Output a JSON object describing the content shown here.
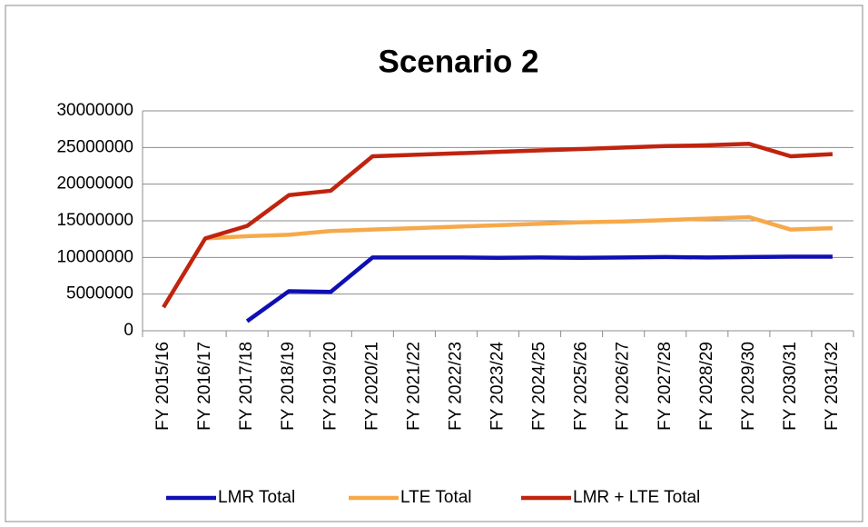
{
  "chart_data": {
    "type": "line",
    "title": "Scenario 2",
    "categories": [
      "FY 2015/16",
      "FY 2016/17",
      "FY 2017/18",
      "FY 2018/19",
      "FY 2019/20",
      "FY 2020/21",
      "FY 2021/22",
      "FY 2022/23",
      "FY 2023/24",
      "FY 2024/25",
      "FY 2025/26",
      "FY 2026/27",
      "FY 2027/28",
      "FY 2028/29",
      "FY 2029/30",
      "FY 2030/31",
      "FY 2031/32"
    ],
    "series": [
      {
        "name": "LMR Total",
        "color": "#0f0fb4",
        "values": [
          null,
          null,
          1300000,
          5400000,
          5300000,
          10000000,
          10000000,
          10000000,
          9950000,
          10000000,
          9950000,
          10000000,
          10050000,
          10000000,
          10050000,
          10100000,
          10100000
        ]
      },
      {
        "name": "LTE Total",
        "color": "#f6a94a",
        "values": [
          null,
          12600000,
          12900000,
          13100000,
          13600000,
          13800000,
          14000000,
          14200000,
          14400000,
          14600000,
          14800000,
          14900000,
          15100000,
          15300000,
          15500000,
          13800000,
          14000000
        ]
      },
      {
        "name": "LMR + LTE Total",
        "color": "#c0240e",
        "values": [
          3200000,
          12600000,
          14300000,
          18500000,
          19100000,
          23800000,
          24000000,
          24200000,
          24400000,
          24600000,
          24800000,
          25000000,
          25200000,
          25300000,
          25500000,
          23800000,
          24100000
        ]
      }
    ],
    "ylim": [
      0,
      30000000
    ],
    "yticks": [
      0,
      5000000,
      10000000,
      15000000,
      20000000,
      25000000,
      30000000
    ],
    "grid": true,
    "legend": "bottom"
  }
}
